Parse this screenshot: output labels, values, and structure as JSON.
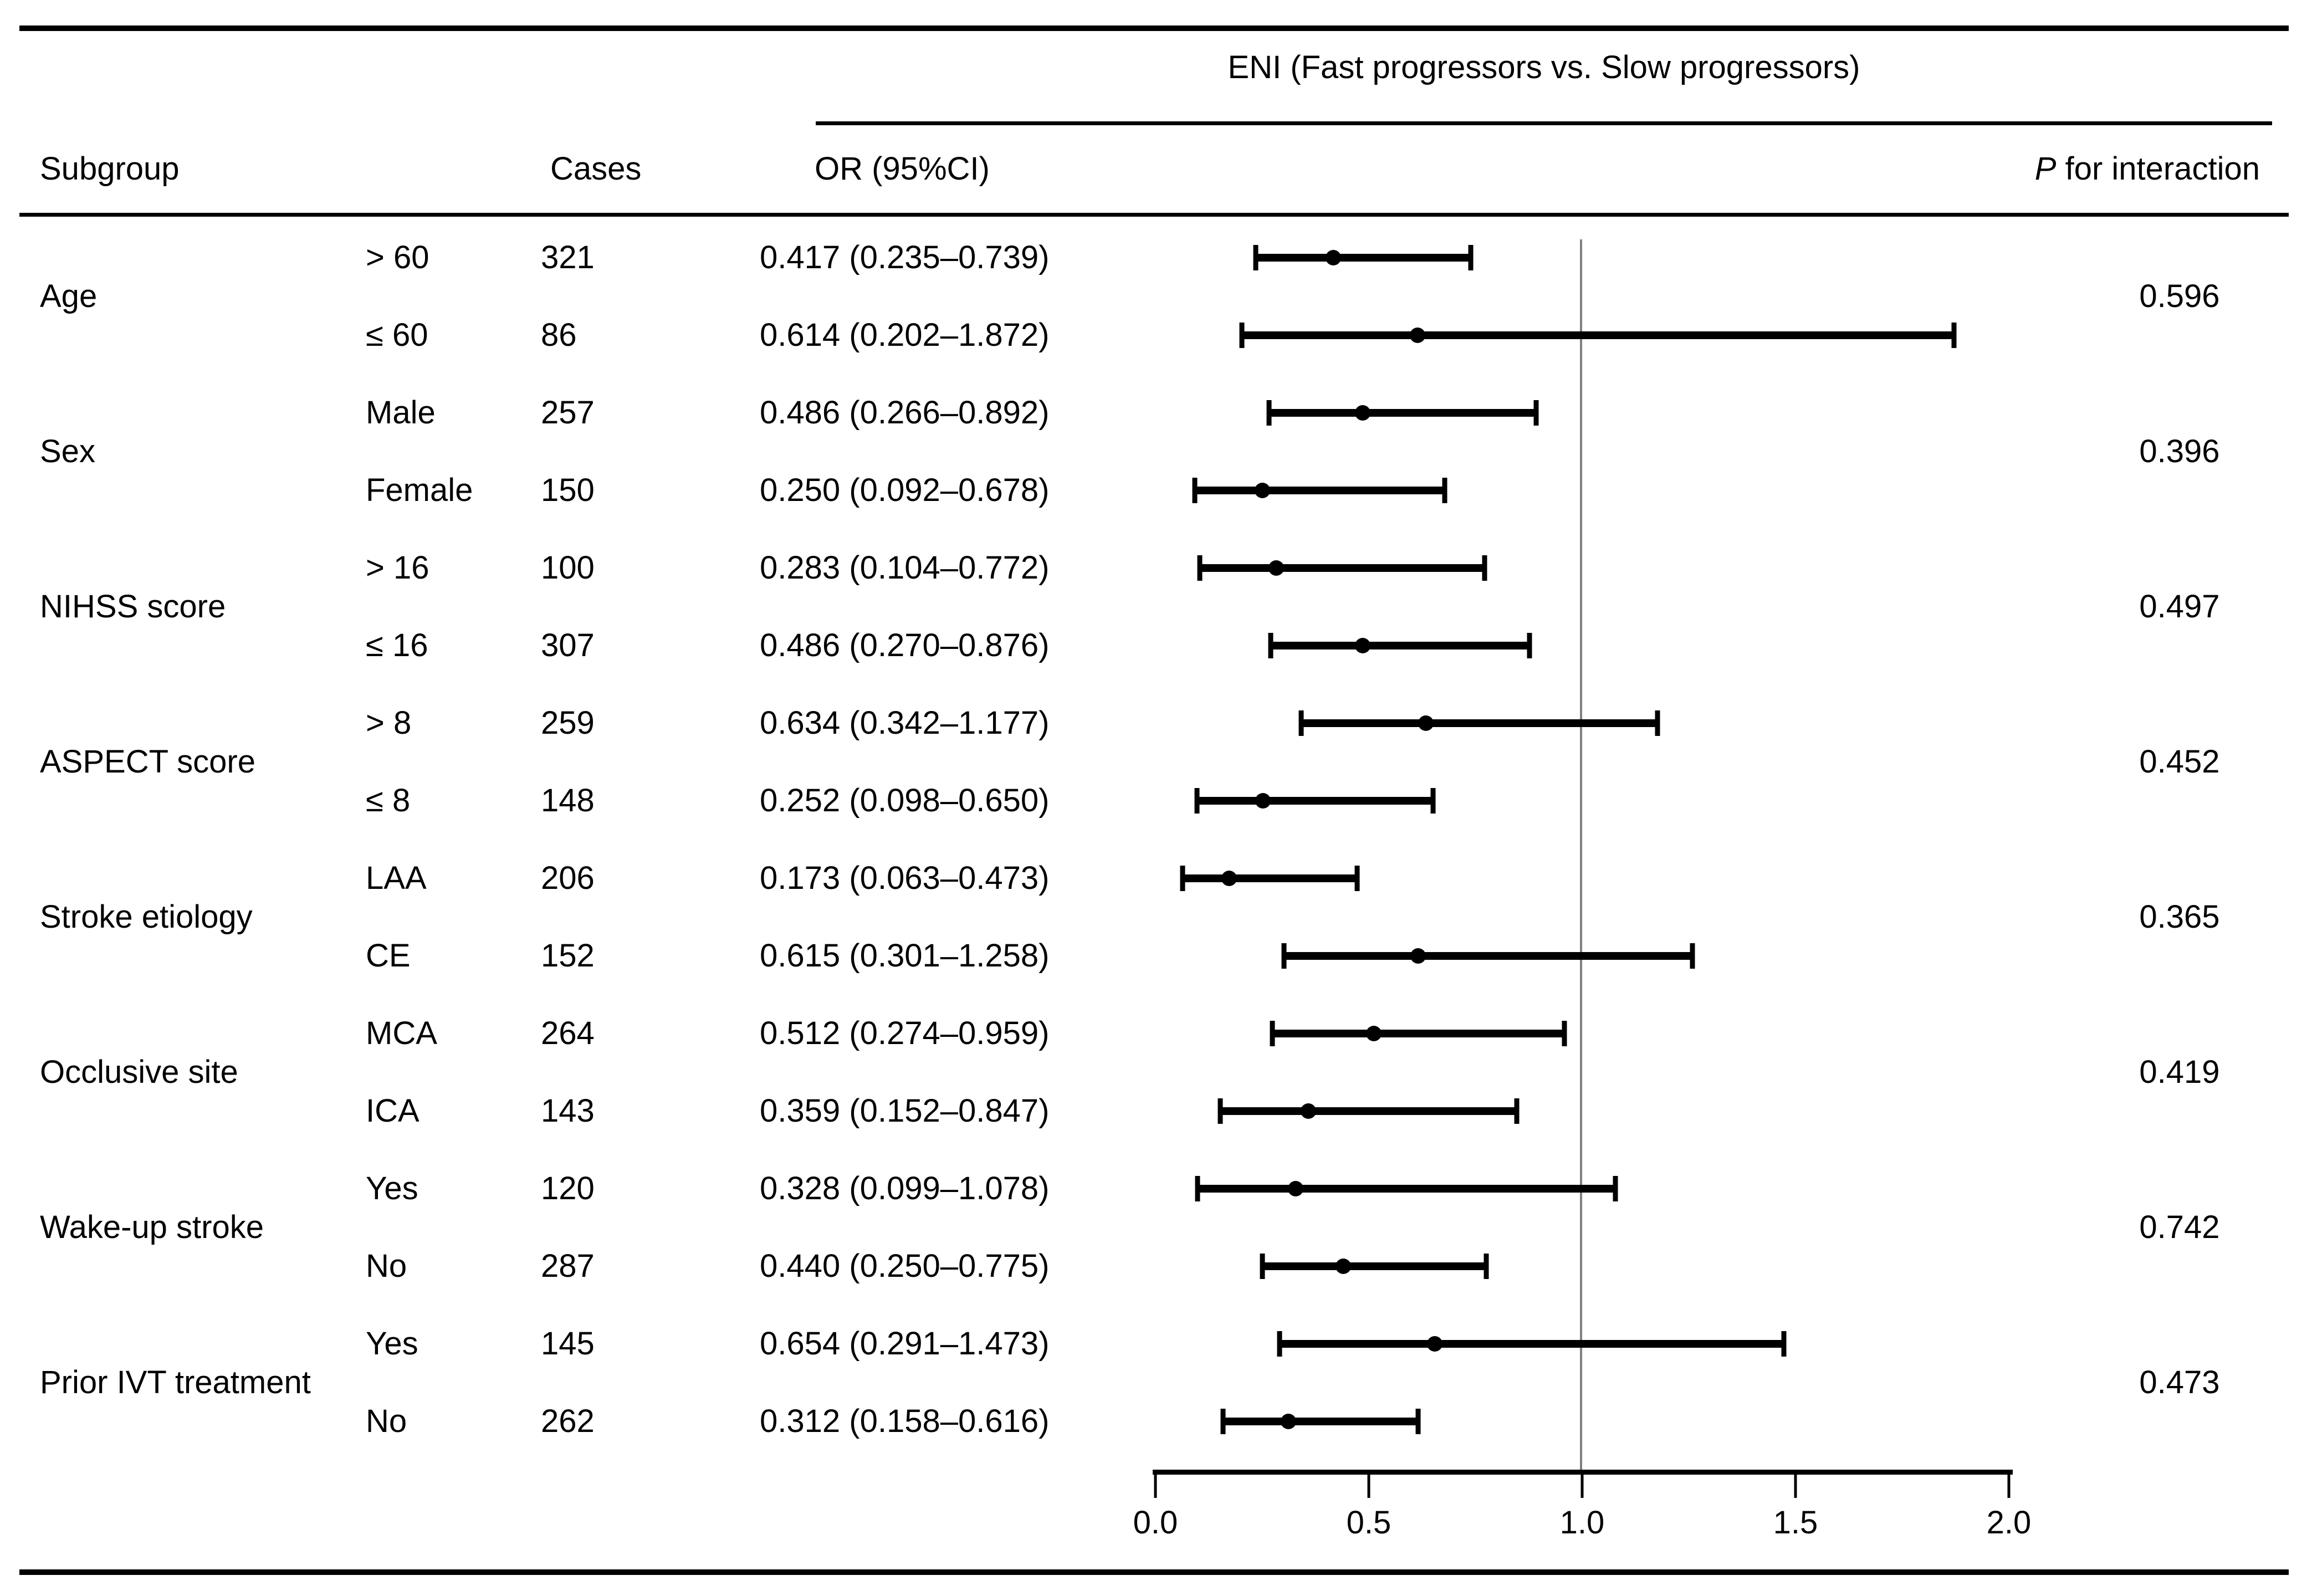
{
  "title": "ENI (Fast progressors vs. Slow progressors)",
  "headers": {
    "subgroup": "Subgroup",
    "cases": "Cases",
    "or": "OR (95%CI)",
    "p_italic": "P",
    "p_rest": " for interaction"
  },
  "colors": {
    "text": "#000000",
    "line": "#000000",
    "reference_line": "#808080",
    "background": "#ffffff"
  },
  "chart_data": {
    "type": "forest",
    "effect_measure": "OR",
    "comparison": "ENI (Fast progressors vs. Slow progressors)",
    "reference_line": 1.0,
    "xlim": [
      0,
      2
    ],
    "x_tick_values": [
      0,
      0.5,
      1,
      1.5,
      2
    ],
    "x_tick_labels": [
      "0.0",
      "0.5",
      "1.0",
      "1.5",
      "2.0"
    ],
    "groups": [
      {
        "label": "Age",
        "p_interaction": "0.596",
        "rows": [
          {
            "level": "> 60",
            "cases": "321",
            "or_text": "0.417 (0.235–0.739)",
            "or": 0.417,
            "lo": 0.235,
            "hi": 0.739
          },
          {
            "level": "≤ 60",
            "cases": "86",
            "or_text": "0.614 (0.202–1.872)",
            "or": 0.614,
            "lo": 0.202,
            "hi": 1.872
          }
        ]
      },
      {
        "label": "Sex",
        "p_interaction": "0.396",
        "rows": [
          {
            "level": "Male",
            "cases": "257",
            "or_text": "0.486 (0.266–0.892)",
            "or": 0.486,
            "lo": 0.266,
            "hi": 0.892
          },
          {
            "level": "Female",
            "cases": "150",
            "or_text": "0.250 (0.092–0.678)",
            "or": 0.25,
            "lo": 0.092,
            "hi": 0.678
          }
        ]
      },
      {
        "label": "NIHSS score",
        "p_interaction": "0.497",
        "rows": [
          {
            "level": "> 16",
            "cases": "100",
            "or_text": "0.283 (0.104–0.772)",
            "or": 0.283,
            "lo": 0.104,
            "hi": 0.772
          },
          {
            "level": "≤ 16",
            "cases": "307",
            "or_text": "0.486 (0.270–0.876)",
            "or": 0.486,
            "lo": 0.27,
            "hi": 0.876
          }
        ]
      },
      {
        "label": "ASPECT score",
        "p_interaction": "0.452",
        "rows": [
          {
            "level": "> 8",
            "cases": "259",
            "or_text": "0.634 (0.342–1.177)",
            "or": 0.634,
            "lo": 0.342,
            "hi": 1.177
          },
          {
            "level": "≤ 8",
            "cases": "148",
            "or_text": "0.252 (0.098–0.650)",
            "or": 0.252,
            "lo": 0.098,
            "hi": 0.65
          }
        ]
      },
      {
        "label": "Stroke etiology",
        "p_interaction": "0.365",
        "rows": [
          {
            "level": "LAA",
            "cases": "206",
            "or_text": "0.173 (0.063–0.473)",
            "or": 0.173,
            "lo": 0.063,
            "hi": 0.473
          },
          {
            "level": "CE",
            "cases": "152",
            "or_text": "0.615 (0.301–1.258)",
            "or": 0.615,
            "lo": 0.301,
            "hi": 1.258
          }
        ]
      },
      {
        "label": "Occlusive site",
        "p_interaction": "0.419",
        "rows": [
          {
            "level": "MCA",
            "cases": "264",
            "or_text": "0.512 (0.274–0.959)",
            "or": 0.512,
            "lo": 0.274,
            "hi": 0.959
          },
          {
            "level": "ICA",
            "cases": "143",
            "or_text": "0.359 (0.152–0.847)",
            "or": 0.359,
            "lo": 0.152,
            "hi": 0.847
          }
        ]
      },
      {
        "label": "Wake-up stroke",
        "p_interaction": "0.742",
        "rows": [
          {
            "level": "Yes",
            "cases": "120",
            "or_text": "0.328 (0.099–1.078)",
            "or": 0.328,
            "lo": 0.099,
            "hi": 1.078
          },
          {
            "level": "No",
            "cases": "287",
            "or_text": "0.440 (0.250–0.775)",
            "or": 0.44,
            "lo": 0.25,
            "hi": 0.775
          }
        ]
      },
      {
        "label": "Prior IVT treatment",
        "p_interaction": "0.473",
        "rows": [
          {
            "level": "Yes",
            "cases": "145",
            "or_text": "0.654 (0.291–1.473)",
            "or": 0.654,
            "lo": 0.291,
            "hi": 1.473
          },
          {
            "level": "No",
            "cases": "262",
            "or_text": "0.312 (0.158–0.616)",
            "or": 0.312,
            "lo": 0.158,
            "hi": 0.616
          }
        ]
      }
    ]
  }
}
